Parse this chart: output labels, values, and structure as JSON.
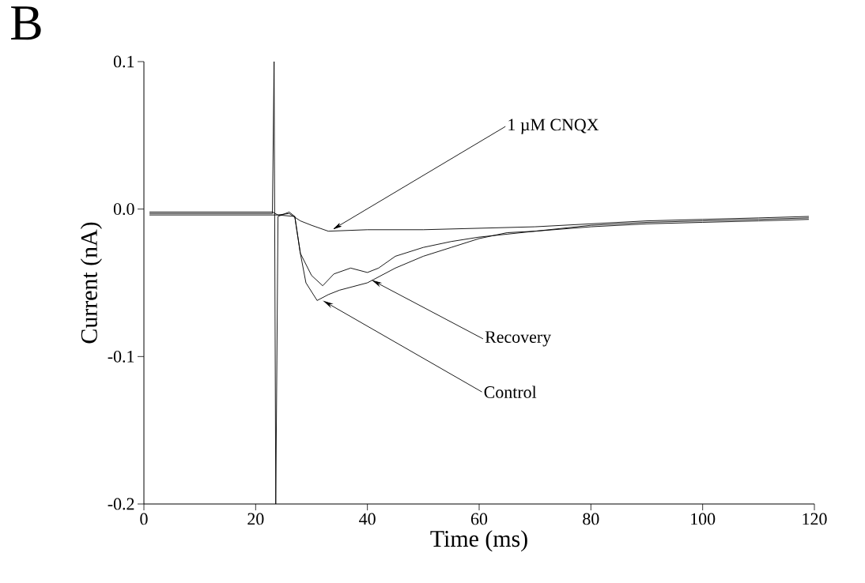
{
  "chart_data": {
    "type": "line",
    "title": "B",
    "xlabel": "Time (ms)",
    "ylabel": "Current (nA)",
    "xlim": [
      0,
      120
    ],
    "xticks": [
      0,
      20,
      40,
      60,
      80,
      100,
      120
    ],
    "ylim": [
      -0.2,
      0.1
    ],
    "yticks": [
      {
        "value": -0.2,
        "label": "-0.2"
      },
      {
        "value": -0.1,
        "label": "-0.1"
      },
      {
        "value": 0.0,
        "label": "0.0"
      },
      {
        "value": 0.1,
        "label": "0.1"
      }
    ],
    "grid": false,
    "marker": "none",
    "line_style": "solid",
    "series": [
      {
        "color": "#000000",
        "x": [
          1,
          23,
          23.3,
          23.6,
          24,
          26,
          27,
          28,
          29,
          31,
          33,
          35,
          40,
          45,
          50,
          55,
          60,
          65,
          70,
          80,
          90,
          100,
          110,
          119
        ],
        "values": [
          -0.003,
          -0.003,
          0.1,
          -0.2,
          -0.005,
          -0.002,
          -0.005,
          -0.03,
          -0.05,
          -0.062,
          -0.058,
          -0.055,
          -0.05,
          -0.04,
          -0.032,
          -0.026,
          -0.02,
          -0.016,
          -0.015,
          -0.012,
          -0.01,
          -0.009,
          -0.008,
          -0.007
        ]
      },
      {
        "color": "#000000",
        "x": [
          1,
          23,
          24,
          27,
          28,
          30,
          32,
          34,
          37,
          40,
          42,
          45,
          50,
          55,
          60,
          70,
          80,
          90,
          100,
          110,
          119
        ],
        "values": [
          -0.004,
          -0.004,
          -0.004,
          -0.005,
          -0.03,
          -0.045,
          -0.052,
          -0.044,
          -0.04,
          -0.043,
          -0.04,
          -0.032,
          -0.026,
          -0.022,
          -0.019,
          -0.015,
          -0.011,
          -0.009,
          -0.008,
          -0.007,
          -0.006
        ]
      },
      {
        "color": "#000000",
        "x": [
          1,
          23,
          24,
          26,
          28,
          30,
          33,
          40,
          50,
          60,
          70,
          80,
          90,
          100,
          110,
          119
        ],
        "values": [
          -0.002,
          -0.002,
          -0.004,
          -0.003,
          -0.008,
          -0.011,
          -0.015,
          -0.014,
          -0.014,
          -0.013,
          -0.012,
          -0.01,
          -0.008,
          -0.007,
          -0.006,
          -0.005
        ]
      }
    ],
    "annotations": [
      {
        "text": "1 µM CNQX",
        "x": 33.7,
        "y": -0.014
      },
      {
        "text": "Recovery",
        "x": 40.7,
        "y": -0.048
      },
      {
        "text": "Control",
        "x": 32,
        "y": -0.062
      }
    ]
  }
}
